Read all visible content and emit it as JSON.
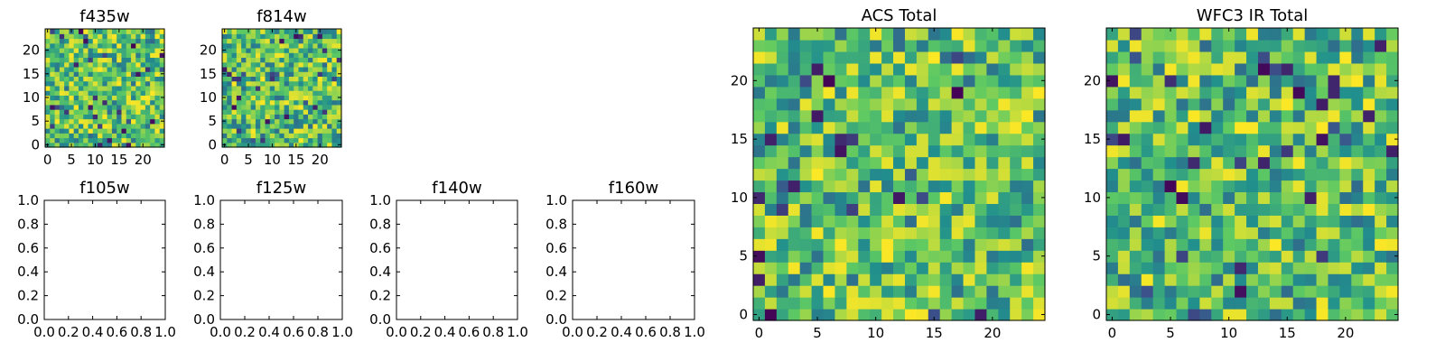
{
  "colormap": [
    "#440154",
    "#3b528b",
    "#21908d",
    "#5dc963",
    "#fde725"
  ],
  "chart_data": [
    {
      "id": "f435w",
      "type": "heatmap",
      "title": "f435w",
      "size": [
        25,
        25
      ],
      "x_ticks": [
        "0",
        "5",
        "10",
        "15",
        "20"
      ],
      "y_ticks": [
        "0",
        "5",
        "10",
        "15",
        "20"
      ],
      "xlim": [
        -0.5,
        24.5
      ],
      "ylim": [
        -0.5,
        24.5
      ],
      "cmap": "viridis",
      "seed": 11
    },
    {
      "id": "f814w",
      "type": "heatmap",
      "title": "f814w",
      "size": [
        25,
        25
      ],
      "x_ticks": [
        "0",
        "5",
        "10",
        "15",
        "20"
      ],
      "y_ticks": [
        "0",
        "5",
        "10",
        "15",
        "20"
      ],
      "xlim": [
        -0.5,
        24.5
      ],
      "ylim": [
        -0.5,
        24.5
      ],
      "cmap": "viridis",
      "seed": 23
    },
    {
      "id": "f105w",
      "type": "empty",
      "title": "f105w",
      "x_ticks": [
        "0.0",
        "0.2",
        "0.4",
        "0.6",
        "0.8",
        "1.0"
      ],
      "y_ticks": [
        "0.0",
        "0.2",
        "0.4",
        "0.6",
        "0.8",
        "1.0"
      ],
      "xlim": [
        0,
        1
      ],
      "ylim": [
        0,
        1
      ]
    },
    {
      "id": "f125w",
      "type": "empty",
      "title": "f125w",
      "x_ticks": [
        "0.0",
        "0.2",
        "0.4",
        "0.6",
        "0.8",
        "1.0"
      ],
      "y_ticks": [
        "0.0",
        "0.2",
        "0.4",
        "0.6",
        "0.8",
        "1.0"
      ],
      "xlim": [
        0,
        1
      ],
      "ylim": [
        0,
        1
      ]
    },
    {
      "id": "f140w",
      "type": "empty",
      "title": "f140w",
      "x_ticks": [
        "0.0",
        "0.2",
        "0.4",
        "0.6",
        "0.8",
        "1.0"
      ],
      "y_ticks": [
        "0.0",
        "0.2",
        "0.4",
        "0.6",
        "0.8",
        "1.0"
      ],
      "xlim": [
        0,
        1
      ],
      "ylim": [
        0,
        1
      ]
    },
    {
      "id": "f160w",
      "type": "empty",
      "title": "f160w",
      "x_ticks": [
        "0.0",
        "0.2",
        "0.4",
        "0.6",
        "0.8",
        "1.0"
      ],
      "y_ticks": [
        "0.0",
        "0.2",
        "0.4",
        "0.6",
        "0.8",
        "1.0"
      ],
      "xlim": [
        0,
        1
      ],
      "ylim": [
        0,
        1
      ]
    },
    {
      "id": "acs",
      "type": "heatmap",
      "title": "ACS Total",
      "size": [
        25,
        25
      ],
      "x_ticks": [
        "0",
        "5",
        "10",
        "15",
        "20"
      ],
      "y_ticks": [
        "0",
        "5",
        "10",
        "15",
        "20"
      ],
      "xlim": [
        -0.5,
        24.5
      ],
      "ylim": [
        -0.5,
        24.5
      ],
      "cmap": "viridis",
      "seed": 37
    },
    {
      "id": "wfc3",
      "type": "heatmap",
      "title": "WFC3 IR Total",
      "size": [
        25,
        25
      ],
      "x_ticks": [
        "0",
        "5",
        "10",
        "15",
        "20"
      ],
      "y_ticks": [
        "0",
        "5",
        "10",
        "15",
        "20"
      ],
      "xlim": [
        -0.5,
        24.5
      ],
      "ylim": [
        -0.5,
        24.5
      ],
      "cmap": "viridis",
      "seed": 59
    }
  ]
}
